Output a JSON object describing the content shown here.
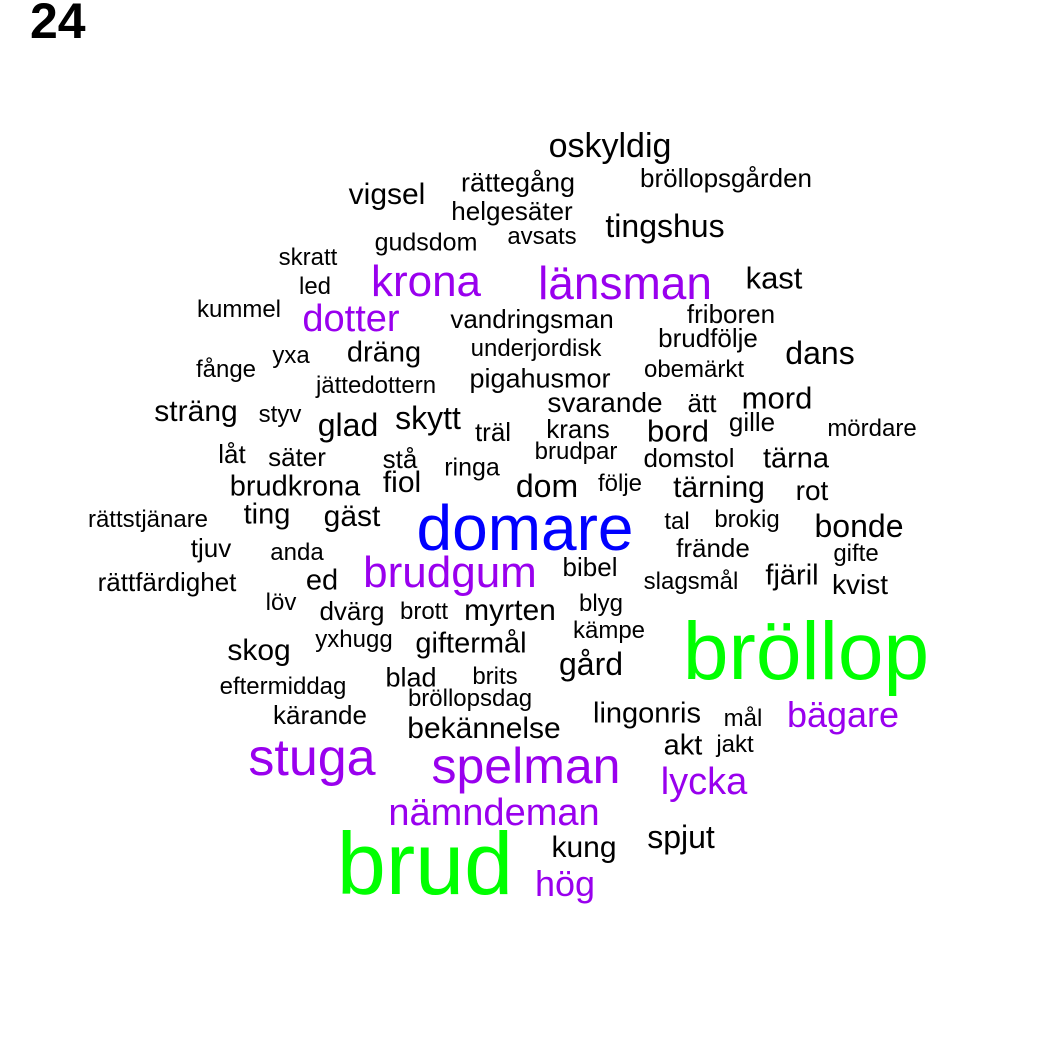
{
  "number": "24",
  "colors": {
    "tier1": "#00ff00",
    "tier2": "#0000ff",
    "tier3": "#9900ee",
    "tier4": "#000000"
  },
  "words": [
    {
      "text": "bröllop",
      "tier": 1
    },
    {
      "text": "brud",
      "tier": 1
    },
    {
      "text": "domare",
      "tier": 2
    },
    {
      "text": "krona",
      "tier": 3
    },
    {
      "text": "länsman",
      "tier": 3
    },
    {
      "text": "dotter",
      "tier": 3
    },
    {
      "text": "brudgum",
      "tier": 3
    },
    {
      "text": "stuga",
      "tier": 3
    },
    {
      "text": "spelman",
      "tier": 3
    },
    {
      "text": "nämndeman",
      "tier": 3
    },
    {
      "text": "lycka",
      "tier": 3
    },
    {
      "text": "bägare",
      "tier": 3
    },
    {
      "text": "hög",
      "tier": 3
    },
    {
      "text": "oskyldig",
      "tier": 4
    },
    {
      "text": "bröllopsgården",
      "tier": 4
    },
    {
      "text": "rättegång",
      "tier": 4
    },
    {
      "text": "vigsel",
      "tier": 4
    },
    {
      "text": "helgesäter",
      "tier": 4
    },
    {
      "text": "tingshus",
      "tier": 4
    },
    {
      "text": "gudsdom",
      "tier": 4
    },
    {
      "text": "avsats",
      "tier": 4
    },
    {
      "text": "skratt",
      "tier": 4
    },
    {
      "text": "led",
      "tier": 4
    },
    {
      "text": "kast",
      "tier": 4
    },
    {
      "text": "kummel",
      "tier": 4
    },
    {
      "text": "vandringsman",
      "tier": 4
    },
    {
      "text": "friboren",
      "tier": 4
    },
    {
      "text": "brudfölje",
      "tier": 4
    },
    {
      "text": "yxa",
      "tier": 4
    },
    {
      "text": "dräng",
      "tier": 4
    },
    {
      "text": "underjordisk",
      "tier": 4
    },
    {
      "text": "dans",
      "tier": 4
    },
    {
      "text": "fånge",
      "tier": 4
    },
    {
      "text": "obemärkt",
      "tier": 4
    },
    {
      "text": "jättedottern",
      "tier": 4
    },
    {
      "text": "pigahusmor",
      "tier": 4
    },
    {
      "text": "mord",
      "tier": 4
    },
    {
      "text": "sträng",
      "tier": 4
    },
    {
      "text": "styv",
      "tier": 4
    },
    {
      "text": "svarande",
      "tier": 4
    },
    {
      "text": "ätt",
      "tier": 4
    },
    {
      "text": "glad",
      "tier": 4
    },
    {
      "text": "skytt",
      "tier": 4
    },
    {
      "text": "träl",
      "tier": 4
    },
    {
      "text": "krans",
      "tier": 4
    },
    {
      "text": "bord",
      "tier": 4
    },
    {
      "text": "gille",
      "tier": 4
    },
    {
      "text": "mördare",
      "tier": 4
    },
    {
      "text": "låt",
      "tier": 4
    },
    {
      "text": "säter",
      "tier": 4
    },
    {
      "text": "stå",
      "tier": 4
    },
    {
      "text": "ringa",
      "tier": 4
    },
    {
      "text": "brudpar",
      "tier": 4
    },
    {
      "text": "domstol",
      "tier": 4
    },
    {
      "text": "tärna",
      "tier": 4
    },
    {
      "text": "brudkrona",
      "tier": 4
    },
    {
      "text": "fiol",
      "tier": 4
    },
    {
      "text": "dom",
      "tier": 4
    },
    {
      "text": "följe",
      "tier": 4
    },
    {
      "text": "tärning",
      "tier": 4
    },
    {
      "text": "rot",
      "tier": 4
    },
    {
      "text": "rättstjänare",
      "tier": 4
    },
    {
      "text": "ting",
      "tier": 4
    },
    {
      "text": "gäst",
      "tier": 4
    },
    {
      "text": "tal",
      "tier": 4
    },
    {
      "text": "brokig",
      "tier": 4
    },
    {
      "text": "bonde",
      "tier": 4
    },
    {
      "text": "tjuv",
      "tier": 4
    },
    {
      "text": "anda",
      "tier": 4
    },
    {
      "text": "frände",
      "tier": 4
    },
    {
      "text": "gifte",
      "tier": 4
    },
    {
      "text": "rättfärdighet",
      "tier": 4
    },
    {
      "text": "ed",
      "tier": 4
    },
    {
      "text": "bibel",
      "tier": 4
    },
    {
      "text": "slagsmål",
      "tier": 4
    },
    {
      "text": "fjäril",
      "tier": 4
    },
    {
      "text": "kvist",
      "tier": 4
    },
    {
      "text": "löv",
      "tier": 4
    },
    {
      "text": "dvärg",
      "tier": 4
    },
    {
      "text": "brott",
      "tier": 4
    },
    {
      "text": "myrten",
      "tier": 4
    },
    {
      "text": "blyg",
      "tier": 4
    },
    {
      "text": "kämpe",
      "tier": 4
    },
    {
      "text": "yxhugg",
      "tier": 4
    },
    {
      "text": "giftermål",
      "tier": 4
    },
    {
      "text": "skog",
      "tier": 4
    },
    {
      "text": "gård",
      "tier": 4
    },
    {
      "text": "blad",
      "tier": 4
    },
    {
      "text": "brits",
      "tier": 4
    },
    {
      "text": "eftermiddag",
      "tier": 4
    },
    {
      "text": "bröllopsdag",
      "tier": 4
    },
    {
      "text": "kärande",
      "tier": 4
    },
    {
      "text": "lingonris",
      "tier": 4
    },
    {
      "text": "mål",
      "tier": 4
    },
    {
      "text": "bekännelse",
      "tier": 4
    },
    {
      "text": "akt",
      "tier": 4
    },
    {
      "text": "jakt",
      "tier": 4
    },
    {
      "text": "spjut",
      "tier": 4
    },
    {
      "text": "kung",
      "tier": 4
    }
  ]
}
